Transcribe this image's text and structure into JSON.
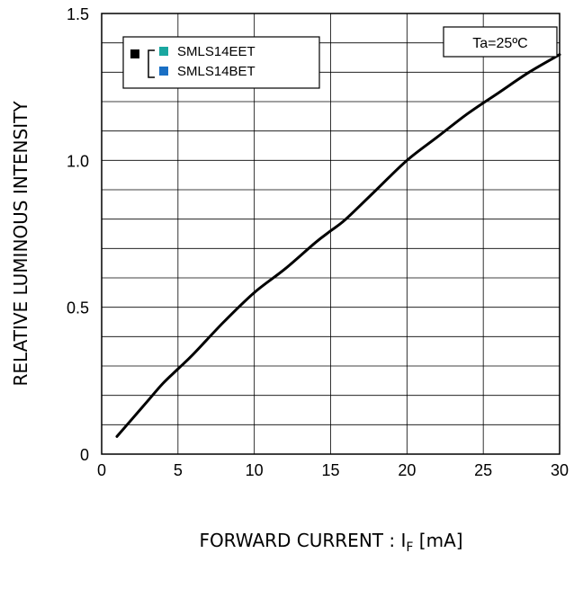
{
  "chart_data": {
    "type": "line",
    "xlabel": "FORWARD CURRENT : I",
    "xlabel_sub": "F",
    "xlabel_suffix": " [mA]",
    "ylabel": "RELATIVE LUMINOUS INTENSITY",
    "xlim": [
      0,
      30
    ],
    "ylim": [
      0,
      1.5
    ],
    "x_ticks": [
      0,
      5,
      10,
      15,
      20,
      25,
      30
    ],
    "x_tick_labels": [
      "0",
      "5",
      "10",
      "15",
      "20",
      "25",
      "30"
    ],
    "y_ticks": [
      0,
      0.5,
      1.0,
      1.5
    ],
    "y_tick_labels": [
      "0",
      "0.5",
      "1.0",
      "1.5"
    ],
    "grid": true,
    "legend_position": "top-left",
    "legend": [
      {
        "label": "SMLS14EET",
        "color": "#1aa7a0"
      },
      {
        "label": "SMLS14BET",
        "color": "#1a6fc4"
      }
    ],
    "legend_group_color": "#000000",
    "condition_label": "Ta=25ºC",
    "series": [
      {
        "color": "#000000",
        "x": [
          1,
          2,
          3,
          4,
          5,
          6,
          8,
          10,
          12,
          14,
          15,
          16,
          18,
          20,
          22,
          24,
          26,
          28,
          30
        ],
        "y": [
          0.06,
          0.12,
          0.18,
          0.24,
          0.29,
          0.34,
          0.45,
          0.55,
          0.63,
          0.72,
          0.76,
          0.8,
          0.9,
          1.0,
          1.08,
          1.16,
          1.23,
          1.3,
          1.36
        ]
      }
    ]
  }
}
